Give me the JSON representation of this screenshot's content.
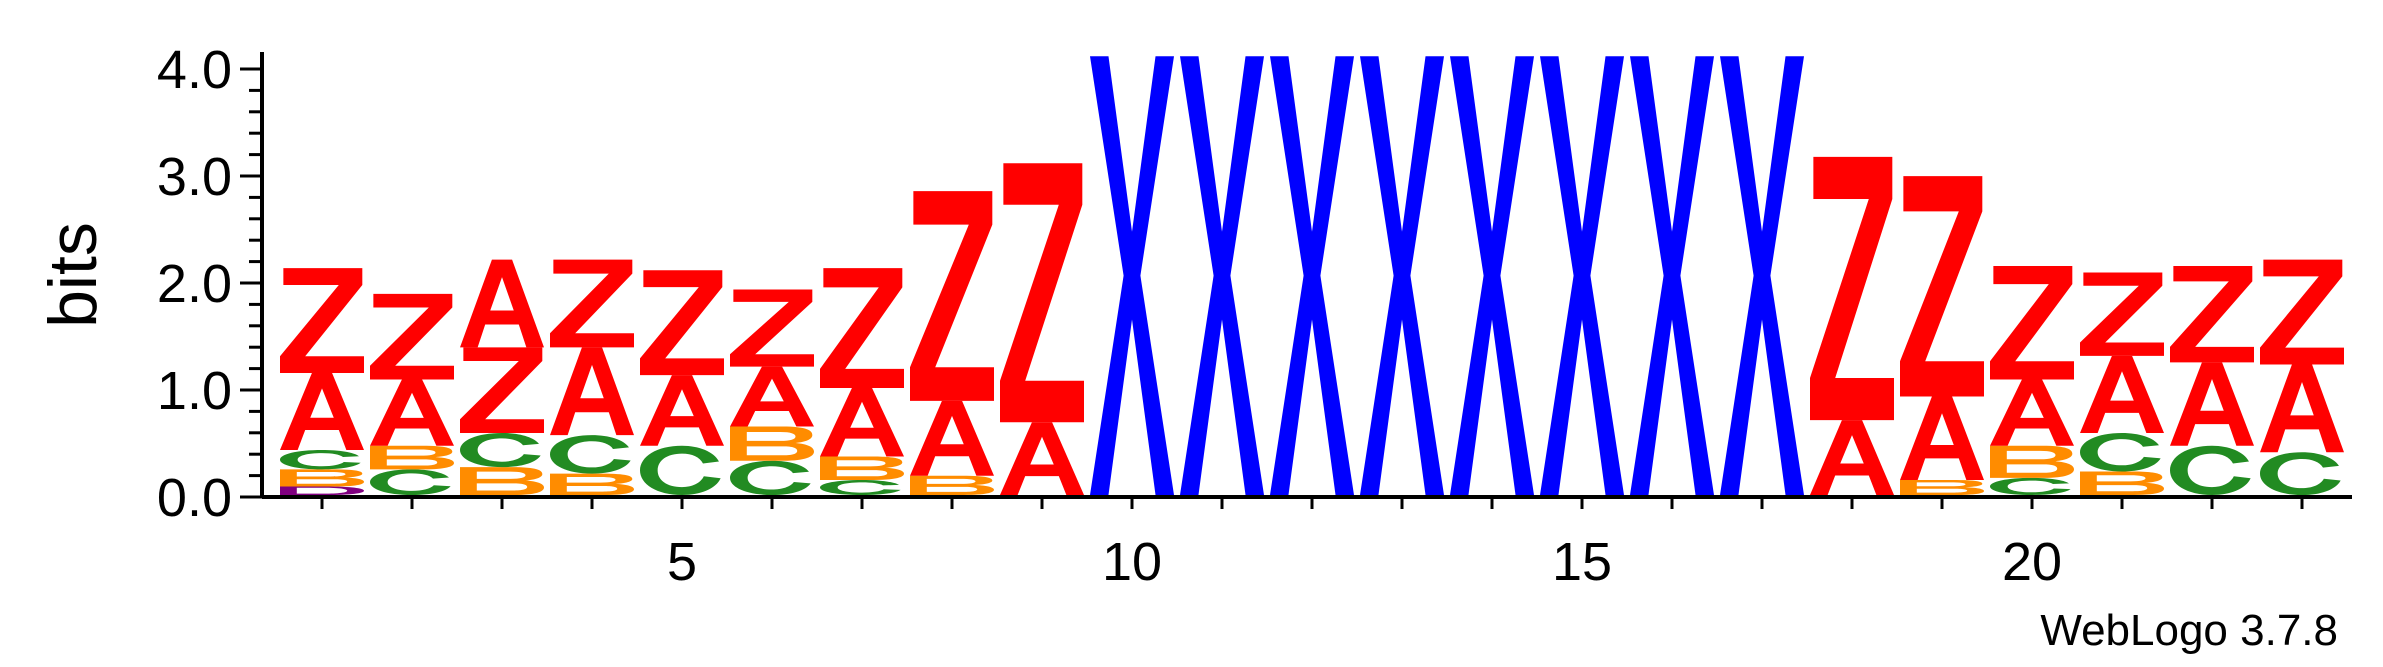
{
  "chart_data": {
    "type": "sequence-logo",
    "ylabel": "bits",
    "ylim": [
      0,
      4.0
    ],
    "yticks": [
      "0.0",
      "1.0",
      "2.0",
      "3.0",
      "4.0"
    ],
    "xticks": [
      5,
      10,
      15,
      20
    ],
    "footer": "WebLogo 3.7.8",
    "colors": {
      "A": "#ff0000",
      "Z": "#ff0000",
      "B": "#ff8c00",
      "C": "#228b22",
      "X": "#0000ff",
      "D": "#800080"
    },
    "positions": [
      {
        "pos": 1,
        "stack": [
          [
            "D",
            0.08
          ],
          [
            "B",
            0.16
          ],
          [
            "C",
            0.18
          ],
          [
            "A",
            0.72
          ],
          [
            "Z",
            0.98
          ]
        ]
      },
      {
        "pos": 2,
        "stack": [
          [
            "C",
            0.24
          ],
          [
            "B",
            0.22
          ],
          [
            "A",
            0.62
          ],
          [
            "Z",
            0.8
          ]
        ]
      },
      {
        "pos": 3,
        "stack": [
          [
            "B",
            0.26
          ],
          [
            "C",
            0.32
          ],
          [
            "Z",
            0.8
          ],
          [
            "A",
            0.82
          ]
        ]
      },
      {
        "pos": 4,
        "stack": [
          [
            "B",
            0.2
          ],
          [
            "C",
            0.36
          ],
          [
            "A",
            0.82
          ],
          [
            "Z",
            0.82
          ]
        ]
      },
      {
        "pos": 5,
        "stack": [
          [
            "C",
            0.46
          ],
          [
            "A",
            0.66
          ],
          [
            "Z",
            0.98
          ]
        ]
      },
      {
        "pos": 6,
        "stack": [
          [
            "C",
            0.32
          ],
          [
            "B",
            0.32
          ],
          [
            "A",
            0.56
          ],
          [
            "Z",
            0.72
          ]
        ]
      },
      {
        "pos": 7,
        "stack": [
          [
            "C",
            0.14
          ],
          [
            "B",
            0.22
          ],
          [
            "A",
            0.64
          ],
          [
            "Z",
            1.12
          ]
        ]
      },
      {
        "pos": 8,
        "stack": [
          [
            "B",
            0.18
          ],
          [
            "A",
            0.7
          ],
          [
            "Z",
            1.96
          ]
        ]
      },
      {
        "pos": 9,
        "stack": [
          [
            "A",
            0.68
          ],
          [
            "Z",
            2.42
          ]
        ]
      },
      {
        "pos": 10,
        "stack": [
          [
            "X",
            4.1
          ]
        ]
      },
      {
        "pos": 11,
        "stack": [
          [
            "X",
            4.1
          ]
        ]
      },
      {
        "pos": 12,
        "stack": [
          [
            "X",
            4.1
          ]
        ]
      },
      {
        "pos": 13,
        "stack": [
          [
            "X",
            4.1
          ]
        ]
      },
      {
        "pos": 14,
        "stack": [
          [
            "X",
            4.1
          ]
        ]
      },
      {
        "pos": 15,
        "stack": [
          [
            "X",
            4.1
          ]
        ]
      },
      {
        "pos": 16,
        "stack": [
          [
            "X",
            4.1
          ]
        ]
      },
      {
        "pos": 17,
        "stack": [
          [
            "X",
            4.1
          ]
        ]
      },
      {
        "pos": 18,
        "stack": [
          [
            "A",
            0.7
          ],
          [
            "Z",
            2.46
          ]
        ]
      },
      {
        "pos": 19,
        "stack": [
          [
            "B",
            0.14
          ],
          [
            "A",
            0.78
          ],
          [
            "Z",
            2.06
          ]
        ]
      },
      {
        "pos": 20,
        "stack": [
          [
            "C",
            0.16
          ],
          [
            "B",
            0.3
          ],
          [
            "A",
            0.62
          ],
          [
            "Z",
            1.06
          ]
        ]
      },
      {
        "pos": 21,
        "stack": [
          [
            "B",
            0.22
          ],
          [
            "C",
            0.36
          ],
          [
            "A",
            0.72
          ],
          [
            "Z",
            0.78
          ]
        ]
      },
      {
        "pos": 22,
        "stack": [
          [
            "C",
            0.46
          ],
          [
            "A",
            0.78
          ],
          [
            "Z",
            0.9
          ]
        ]
      },
      {
        "pos": 23,
        "stack": [
          [
            "C",
            0.4
          ],
          [
            "A",
            0.82
          ],
          [
            "Z",
            0.98
          ]
        ]
      }
    ]
  }
}
